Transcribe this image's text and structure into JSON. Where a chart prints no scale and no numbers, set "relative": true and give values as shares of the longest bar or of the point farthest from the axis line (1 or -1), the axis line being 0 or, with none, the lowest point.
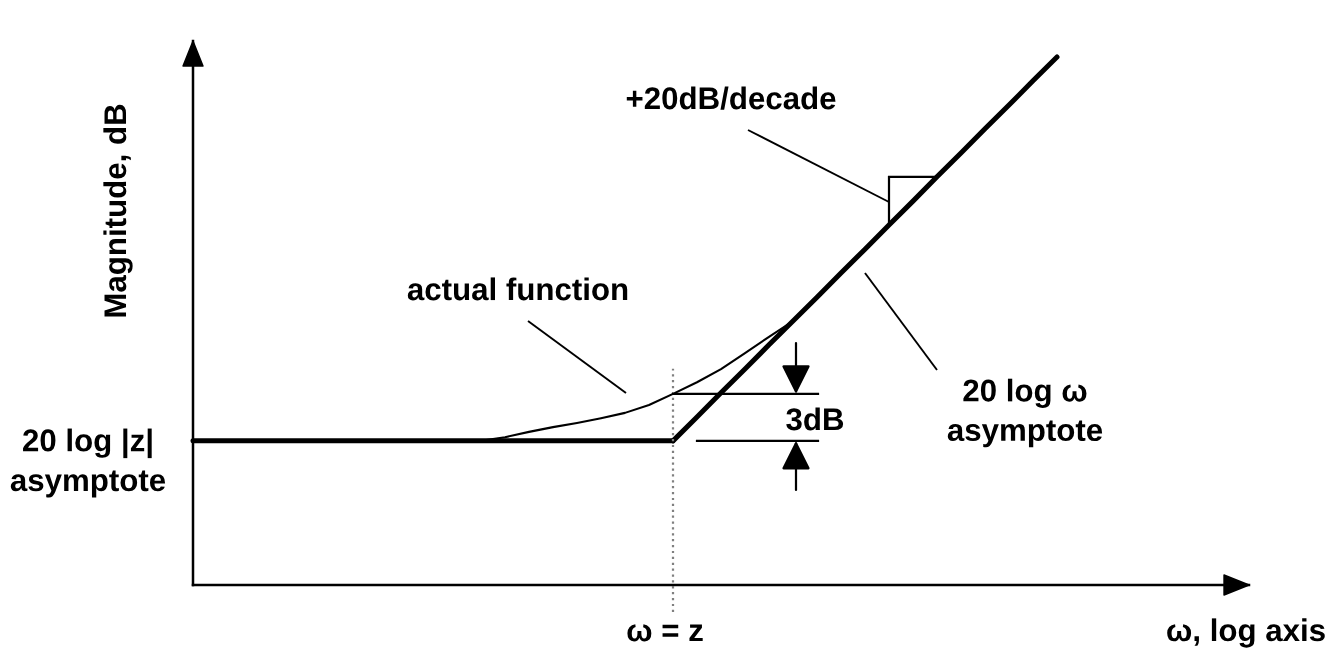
{
  "chart_data": {
    "type": "line",
    "relative": true,
    "xlabel": "ω, log axis",
    "ylabel": "Magnitude, dB",
    "categories": [
      null,
      null,
      null,
      null,
      null,
      null,
      null,
      null,
      null,
      null,
      null,
      null,
      null,
      null,
      null,
      null,
      null,
      null,
      null,
      null,
      null,
      null,
      null,
      null,
      null,
      null,
      null,
      null,
      null,
      null,
      null,
      null,
      null,
      null,
      null,
      null,
      null,
      null,
      null,
      null,
      null,
      null,
      null,
      null,
      null
    ],
    "series": [
      {
        "name": "20 log |z|\nasymptote",
        "color": "#000000",
        "values": [
          0.273,
          0.273,
          0.273,
          0.273,
          0.273,
          0.273,
          0.273,
          0.273,
          0.273,
          0.273,
          0.273,
          0.273,
          0.273,
          0.273,
          0.273,
          0.273,
          0.273,
          0.273,
          0.273,
          0.273,
          0.273,
          null,
          null,
          null,
          null,
          null,
          null,
          null,
          null,
          null,
          null,
          null,
          null,
          null,
          null,
          null,
          null,
          null,
          null,
          null,
          null,
          null,
          null,
          null,
          null
        ]
      },
      {
        "color": "#000000",
        "values": [
          null,
          null,
          null,
          null,
          null,
          null,
          null,
          null,
          null,
          null,
          null,
          null,
          null,
          null,
          null,
          null,
          null,
          null,
          null,
          null,
          0.273,
          0.318,
          0.364,
          0.409,
          0.455,
          0.5,
          0.545,
          0.591,
          0.636,
          0.682,
          0.727,
          0.773,
          0.818,
          0.864,
          0.909,
          0.955,
          1.0,
          null,
          null,
          null,
          null,
          null,
          null,
          null,
          null
        ]
      },
      {
        "color": "#000000",
        "values": [
          null,
          null,
          null,
          null,
          null,
          null,
          null,
          null,
          null,
          null,
          null,
          null,
          0.273,
          0.28,
          0.29,
          0.299,
          0.307,
          0.316,
          0.326,
          0.341,
          0.362,
          0.384,
          0.409,
          0.439,
          0.47,
          0.5,
          null,
          null,
          null,
          null,
          null,
          null,
          null,
          null,
          null,
          null,
          null,
          null,
          null,
          null,
          null,
          null,
          null,
          null,
          null
        ]
      }
    ],
    "annotations": [
      "+20dB/decade",
      "3dB",
      "actual function",
      "20 log ω\nasymptote",
      "ω = z"
    ]
  }
}
